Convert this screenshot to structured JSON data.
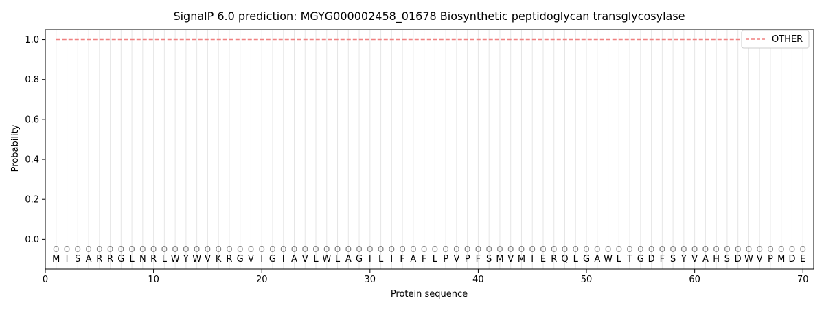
{
  "chart_data": {
    "type": "line",
    "title": "SignalP 6.0 prediction: MGYG000002458_01678 Biosynthetic peptidoglycan transglycosylase",
    "xlabel": "Protein sequence",
    "ylabel": "Probability",
    "xlim": [
      0,
      71
    ],
    "ylim": [
      -0.15,
      1.05
    ],
    "xticks": [
      0,
      10,
      20,
      30,
      40,
      50,
      60,
      70
    ],
    "yticks": [
      0.0,
      0.2,
      0.4,
      0.6,
      0.8,
      1.0
    ],
    "ytick_labels": [
      "0.0",
      "0.2",
      "0.4",
      "0.6",
      "0.8",
      "1.0"
    ],
    "sequence": [
      "M",
      "I",
      "S",
      "A",
      "R",
      "R",
      "G",
      "L",
      "N",
      "R",
      "L",
      "W",
      "Y",
      "W",
      "V",
      "K",
      "R",
      "G",
      "V",
      "I",
      "G",
      "I",
      "A",
      "V",
      "L",
      "W",
      "L",
      "A",
      "G",
      "I",
      "L",
      "I",
      "F",
      "A",
      "F",
      "L",
      "P",
      "V",
      "P",
      "F",
      "S",
      "M",
      "V",
      "M",
      "I",
      "E",
      "R",
      "Q",
      "L",
      "G",
      "A",
      "W",
      "L",
      "T",
      "G",
      "D",
      "F",
      "S",
      "Y",
      "V",
      "A",
      "H",
      "S",
      "D",
      "W",
      "V",
      "P",
      "M",
      "D",
      "E"
    ],
    "predicted_label": "O",
    "series": [
      {
        "name": "OTHER",
        "color": "#f08080",
        "style": "dashed",
        "x_start": 1,
        "x_end": 70,
        "value": 1.0
      }
    ],
    "grid": "vertical lines at each residue",
    "legend_position": "top-right"
  }
}
